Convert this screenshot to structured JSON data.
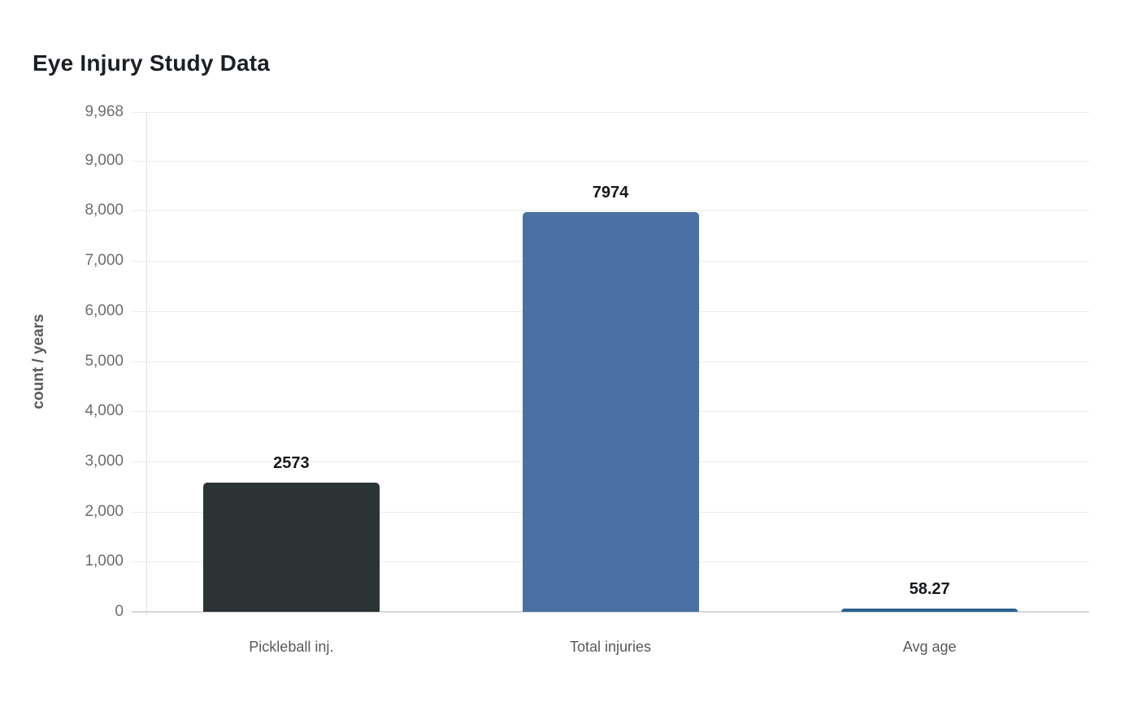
{
  "chart": {
    "title": "Eye Injury Study Data",
    "ylabel": "count / years"
  },
  "chart_data": {
    "type": "bar",
    "title": "Eye Injury Study Data",
    "xlabel": "",
    "ylabel": "count / years",
    "categories": [
      "Pickleball inj.",
      "Total injuries",
      "Avg age"
    ],
    "values": [
      2573,
      7974,
      58.27
    ],
    "value_labels": [
      "2573",
      "7974",
      "58.27"
    ],
    "bar_colors": [
      "#2c3335",
      "#4a70a4",
      "#2a6191"
    ],
    "ylim": [
      0,
      9968
    ],
    "yticks": [
      {
        "value": 0,
        "label": "0"
      },
      {
        "value": 1000,
        "label": "1,000"
      },
      {
        "value": 2000,
        "label": "2,000"
      },
      {
        "value": 3000,
        "label": "3,000"
      },
      {
        "value": 4000,
        "label": "4,000"
      },
      {
        "value": 5000,
        "label": "5,000"
      },
      {
        "value": 6000,
        "label": "6,000"
      },
      {
        "value": 7000,
        "label": "7,000"
      },
      {
        "value": 8000,
        "label": "8,000"
      },
      {
        "value": 9000,
        "label": "9,000"
      },
      {
        "value": 9968,
        "label": "9,968"
      }
    ],
    "grid": "horizontal",
    "legend": "none",
    "colors": {
      "background": "#ffffff",
      "gridline": "#ececec",
      "axis_line": "#d6d6d6",
      "tick_text": "#6d6d6d",
      "title_text": "#1c2024",
      "value_text": "#15181b",
      "category_text": "#57595b"
    }
  }
}
